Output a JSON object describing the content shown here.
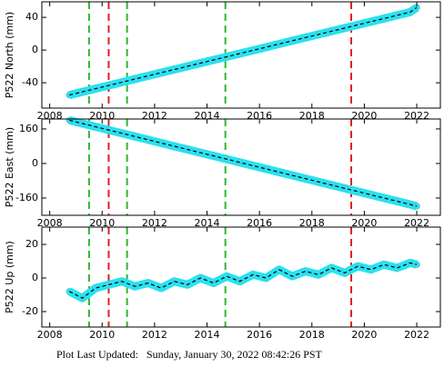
{
  "chart_data": [
    {
      "type": "line",
      "ylabel": "P522 North (mm)",
      "x": [
        2008.75,
        2009.25,
        2009.75,
        2010.25,
        2010.75,
        2011.25,
        2011.75,
        2012.25,
        2012.75,
        2013.25,
        2013.75,
        2014.25,
        2014.75,
        2015.25,
        2015.75,
        2016.25,
        2016.75,
        2017.25,
        2017.75,
        2018.25,
        2018.75,
        2019.25,
        2019.75,
        2020.25,
        2020.75,
        2021.25,
        2021.75,
        2022.0
      ],
      "values": [
        -55,
        -51.1,
        -47.2,
        -43.3,
        -39.4,
        -35.5,
        -31.6,
        -27.7,
        -23.8,
        -19.9,
        -16,
        -12.1,
        -8.2,
        -4.3,
        -0.4,
        3.5,
        7.4,
        11.3,
        15.2,
        19.1,
        23,
        26.9,
        30.8,
        34.7,
        38.6,
        42.5,
        46.4,
        52
      ],
      "color": "#22e5f5",
      "xlim": [
        2007.7,
        2022.9
      ],
      "ylim": [
        -71,
        59
      ],
      "xticks": [
        2008,
        2010,
        2012,
        2014,
        2016,
        2018,
        2020,
        2022
      ],
      "yticks": [
        -40,
        0,
        40
      ],
      "vlines": [
        {
          "x": 2009.5,
          "color": "#2db82d"
        },
        {
          "x": 2010.95,
          "color": "#2db82d"
        },
        {
          "x": 2014.7,
          "color": "#2db82d"
        },
        {
          "x": 2010.25,
          "color": "#e02020"
        },
        {
          "x": 2019.5,
          "color": "#e02020"
        }
      ]
    },
    {
      "type": "line",
      "ylabel": "P522 East (mm)",
      "x": [
        2008.75,
        2009.25,
        2009.75,
        2010.25,
        2010.75,
        2011.25,
        2011.75,
        2012.25,
        2012.75,
        2013.25,
        2013.75,
        2014.25,
        2014.75,
        2015.25,
        2015.75,
        2016.25,
        2016.75,
        2017.25,
        2017.75,
        2018.25,
        2018.75,
        2019.25,
        2019.75,
        2020.25,
        2020.75,
        2021.25,
        2021.75,
        2022.0
      ],
      "values": [
        200,
        185,
        170,
        155,
        140,
        125,
        110,
        95,
        80,
        65,
        50,
        35,
        20,
        5,
        -10,
        -25,
        -40,
        -55,
        -70,
        -85,
        -100,
        -115,
        -130,
        -145,
        -160,
        -175,
        -190,
        -198
      ],
      "color": "#22e5f5",
      "xlim": [
        2007.7,
        2022.9
      ],
      "ylim": [
        -240,
        206
      ],
      "xticks": [
        2008,
        2010,
        2012,
        2014,
        2016,
        2018,
        2020,
        2022
      ],
      "yticks": [
        -160,
        0,
        160
      ],
      "vlines": [
        {
          "x": 2009.5,
          "color": "#2db82d"
        },
        {
          "x": 2010.95,
          "color": "#2db82d"
        },
        {
          "x": 2014.7,
          "color": "#2db82d"
        },
        {
          "x": 2010.25,
          "color": "#e02020"
        },
        {
          "x": 2019.5,
          "color": "#e02020"
        }
      ]
    },
    {
      "type": "line",
      "ylabel": "P522 Up (mm)",
      "x": [
        2008.75,
        2009.25,
        2009.75,
        2010.25,
        2010.75,
        2011.25,
        2011.75,
        2012.25,
        2012.75,
        2013.25,
        2013.75,
        2014.25,
        2014.75,
        2015.25,
        2015.75,
        2016.25,
        2016.75,
        2017.25,
        2017.75,
        2018.25,
        2018.75,
        2019.25,
        2019.75,
        2020.25,
        2020.75,
        2021.25,
        2021.75,
        2022.0
      ],
      "values": [
        -8,
        -12,
        -6,
        -4,
        -2,
        -5,
        -3,
        -6,
        -2,
        -4,
        0,
        -3,
        1,
        -2,
        2,
        0,
        5,
        1,
        4,
        2,
        6,
        3,
        7,
        5,
        8,
        6,
        9,
        8
      ],
      "color": "#22e5f5",
      "xlim": [
        2007.7,
        2022.9
      ],
      "ylim": [
        -29.2,
        30.3
      ],
      "xticks": [
        2008,
        2010,
        2012,
        2014,
        2016,
        2018,
        2020,
        2022
      ],
      "yticks": [
        -20,
        0,
        20
      ],
      "vlines": [
        {
          "x": 2009.5,
          "color": "#2db82d"
        },
        {
          "x": 2010.95,
          "color": "#2db82d"
        },
        {
          "x": 2014.7,
          "color": "#2db82d"
        },
        {
          "x": 2010.25,
          "color": "#e02020"
        },
        {
          "x": 2019.5,
          "color": "#e02020"
        }
      ]
    }
  ],
  "footer": "Plot Last Updated:   Sunday, January 30, 2022 08:42:26 PST"
}
